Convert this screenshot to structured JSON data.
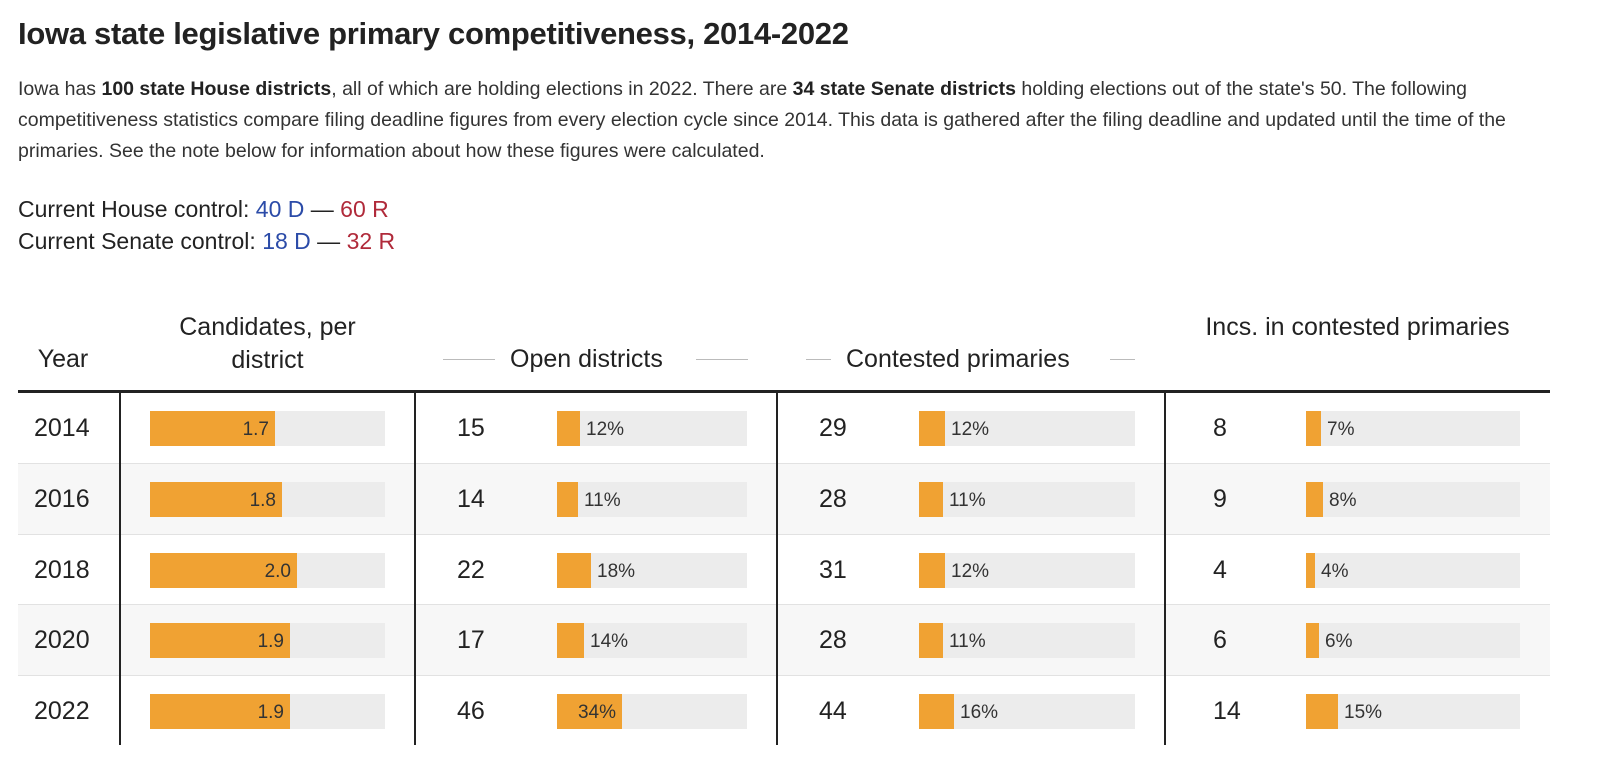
{
  "title": "Iowa state legislative primary competitiveness, 2014-2022",
  "intro": {
    "p1": "Iowa has ",
    "b1": "100 state House districts",
    "p2": ", all of which are holding elections in 2022. There are ",
    "b2": "34 state Senate districts",
    "p3": " holding elections out of the state's 50. The following competitiveness statistics compare filing deadline figures from every election cycle since 2014. This data is gathered after the filing deadline and updated until the time of the primaries. See the note below for information about how these figures were calculated."
  },
  "control": {
    "house_label": "Current House control: ",
    "house_d": "40 D",
    "house_sep": " — ",
    "house_r": "60 R",
    "senate_label": "Current Senate control: ",
    "senate_d": "18 D",
    "senate_sep": " — ",
    "senate_r": "32 R"
  },
  "colors": {
    "bar": "#f0a233",
    "track": "#ececec",
    "democrat": "#2b4ba8",
    "republican": "#b02a3a"
  },
  "chart_data": {
    "type": "table",
    "columns": [
      "Year",
      "Candidates, per district",
      "Open districts",
      "Contested primaries",
      "Incs. in contested primaries"
    ],
    "cand_max": 3.2,
    "rows": [
      {
        "year": "2014",
        "cand": 1.7,
        "cand_label": "1.7",
        "open": "15",
        "open_pct": 12,
        "open_label": "12%",
        "cont": "29",
        "cont_pct": 12,
        "cont_label": "12%",
        "inc": "8",
        "inc_pct": 7,
        "inc_label": "7%"
      },
      {
        "year": "2016",
        "cand": 1.8,
        "cand_label": "1.8",
        "open": "14",
        "open_pct": 11,
        "open_label": "11%",
        "cont": "28",
        "cont_pct": 11,
        "cont_label": "11%",
        "inc": "9",
        "inc_pct": 8,
        "inc_label": "8%"
      },
      {
        "year": "2018",
        "cand": 2.0,
        "cand_label": "2.0",
        "open": "22",
        "open_pct": 18,
        "open_label": "18%",
        "cont": "31",
        "cont_pct": 12,
        "cont_label": "12%",
        "inc": "4",
        "inc_pct": 4,
        "inc_label": "4%"
      },
      {
        "year": "2020",
        "cand": 1.9,
        "cand_label": "1.9",
        "open": "17",
        "open_pct": 14,
        "open_label": "14%",
        "cont": "28",
        "cont_pct": 11,
        "cont_label": "11%",
        "inc": "6",
        "inc_pct": 6,
        "inc_label": "6%"
      },
      {
        "year": "2022",
        "cand": 1.9,
        "cand_label": "1.9",
        "open": "46",
        "open_pct": 34,
        "open_label": "34%",
        "cont": "44",
        "cont_pct": 16,
        "cont_label": "16%",
        "inc": "14",
        "inc_pct": 15,
        "inc_label": "15%"
      }
    ]
  }
}
